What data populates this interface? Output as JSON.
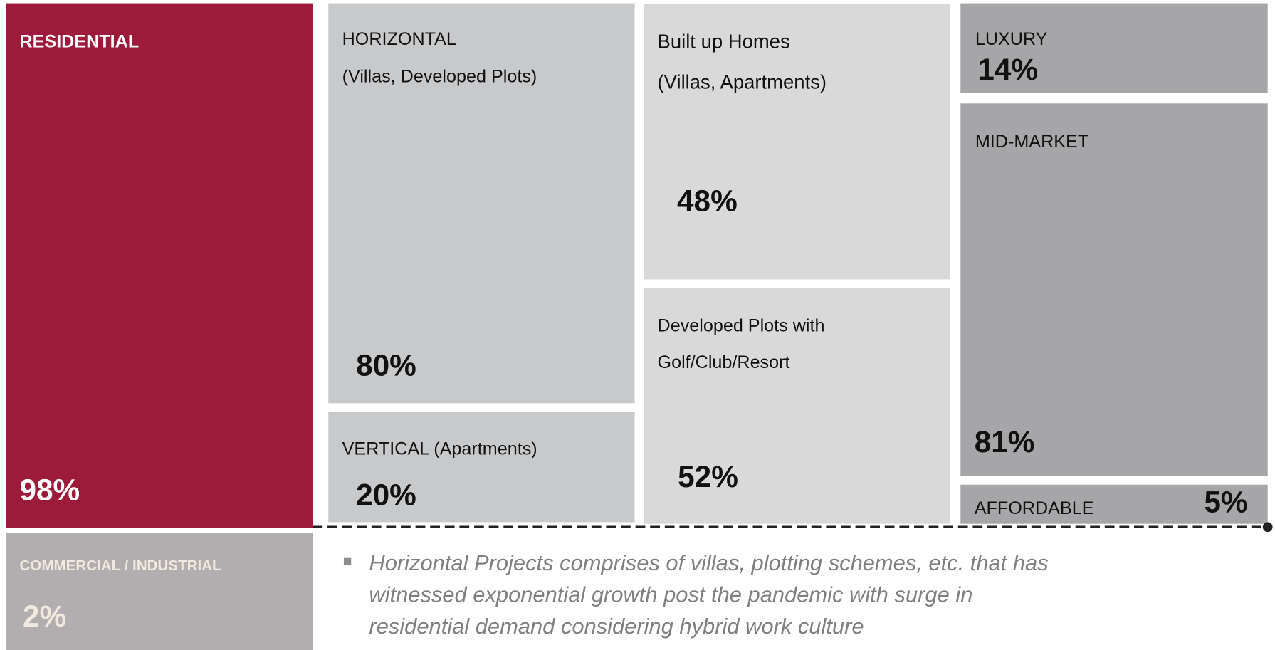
{
  "tiles": [
    {
      "title": "RESIDENTIAL",
      "share": "98%"
    },
    {
      "title": "COMMERCIAL / INDUSTRIAL",
      "share": "2%"
    },
    {
      "title": "HORIZONTAL",
      "subtitle": "(Villas, Developed Plots)",
      "share": "80%"
    },
    {
      "title": "VERTICAL (Apartments)",
      "share": "20%"
    },
    {
      "title": "Built up Homes",
      "subtitle": "(Villas, Apartments)",
      "share": "48%"
    },
    {
      "title": "Developed Plots with",
      "subtitle": "Golf/Club/Resort",
      "share": "52%"
    },
    {
      "title": "LUXURY",
      "share": "14%"
    },
    {
      "title": "MID-MARKET",
      "share": "81%"
    },
    {
      "title": "AFFORDABLE",
      "share": "5%"
    }
  ],
  "note": [
    "Horizontal Projects comprises of villas, plotting schemes, etc. that has",
    "witnessed exponential growth post the pandemic with surge in",
    "residential demand considering hybrid work culture"
  ]
}
